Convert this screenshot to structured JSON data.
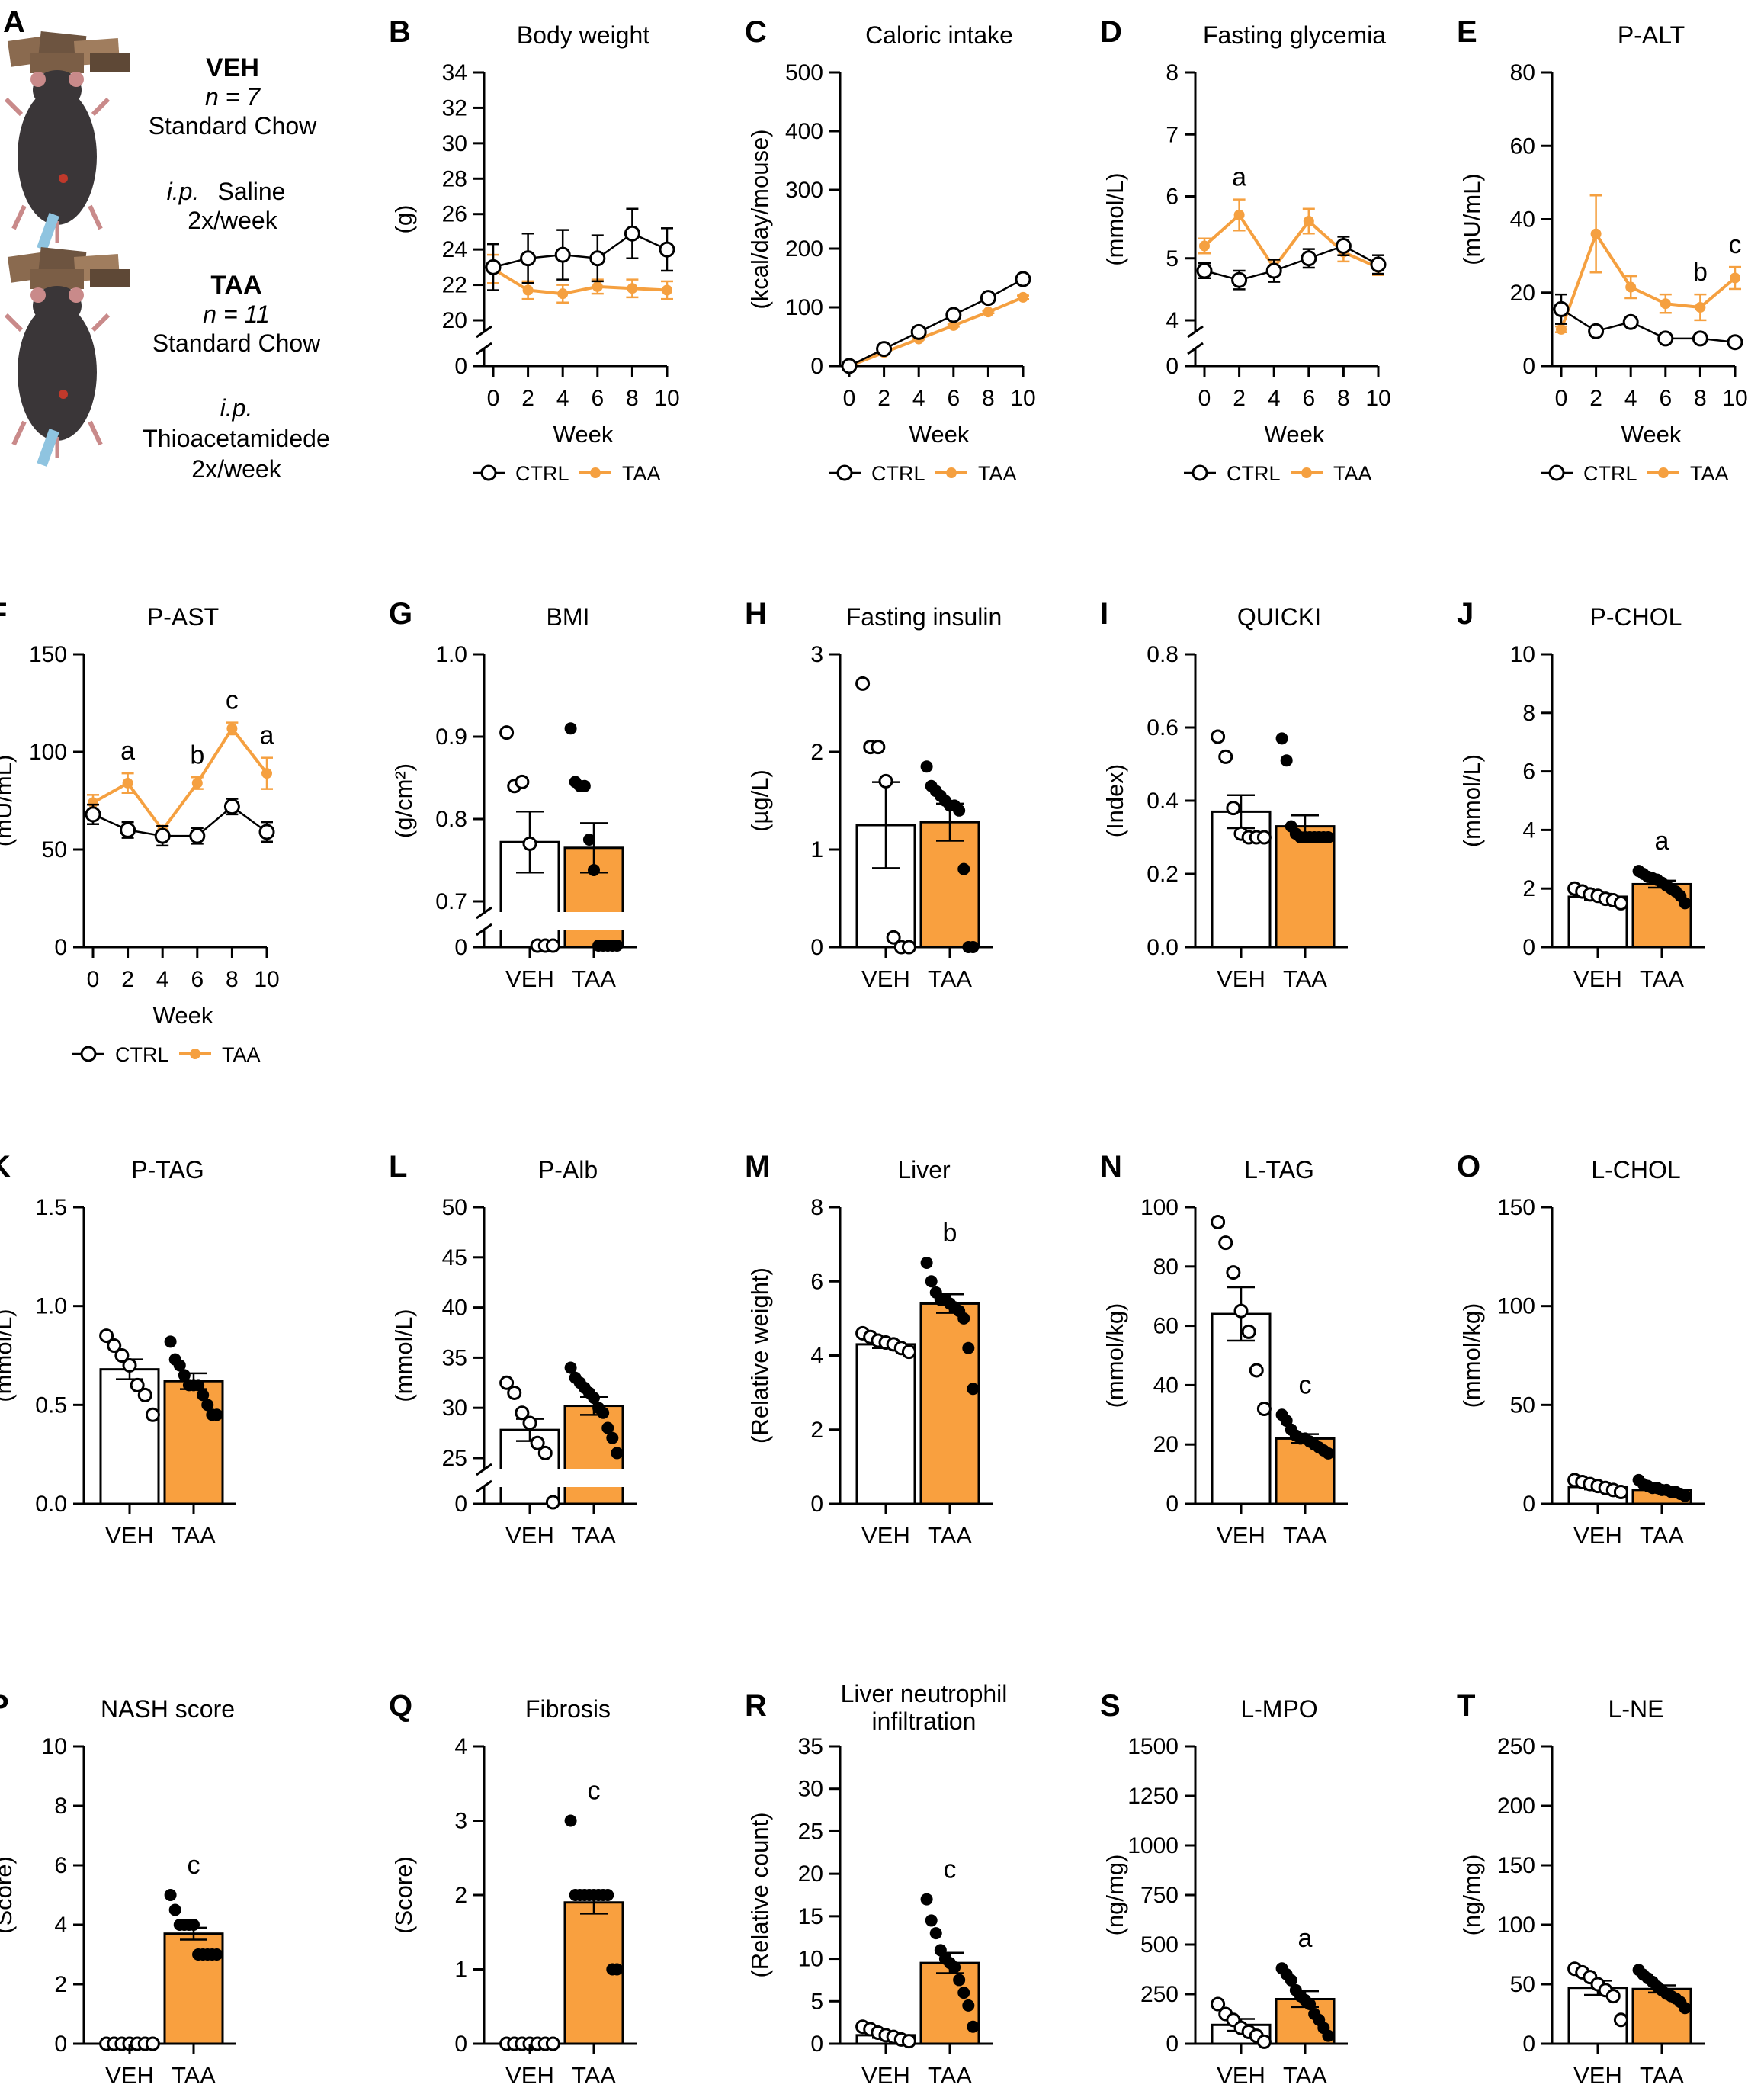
{
  "colors": {
    "ctrl_fill": "#ffffff",
    "taa_fill": "#f9a03f",
    "taa_line": "#f5a040",
    "ink": "#000000"
  },
  "legend": {
    "ctrl": "CTRL",
    "taa": "TAA"
  },
  "groups": {
    "veh": "VEH",
    "taa": "TAA"
  },
  "week_label": "Week",
  "scheme": {
    "label": "A",
    "veh": {
      "title": "VEH",
      "n": "n = 7",
      "diet": "Standard Chow",
      "route": "i.p.",
      "agent": "Saline",
      "freq": "2x/week"
    },
    "taa": {
      "title": "TAA",
      "n": "n = 11",
      "diet": "Standard Chow",
      "route": "i.p.",
      "agent": "Thioacetamidede",
      "freq": "2x/week"
    },
    "icons": [
      "chow-pellets-icon",
      "mouse-icon",
      "syringe-icon"
    ]
  },
  "chart_data": [
    {
      "id": "B",
      "type": "line",
      "title": "Body weight",
      "ylabel": "(g)",
      "xlabel": "Week",
      "x": [
        0,
        2,
        4,
        6,
        8,
        10
      ],
      "ylim": [
        20,
        34
      ],
      "yticks": [
        "20",
        "22",
        "24",
        "26",
        "28",
        "30",
        "32",
        "34"
      ],
      "axis_break": true,
      "zero_tick": "0",
      "series": [
        {
          "name": "CTRL",
          "values": [
            23.0,
            23.5,
            23.7,
            23.5,
            24.9,
            24.0
          ],
          "err": [
            1.3,
            1.4,
            1.4,
            1.3,
            1.4,
            1.2
          ]
        },
        {
          "name": "TAA",
          "values": [
            22.9,
            21.7,
            21.5,
            21.9,
            21.8,
            21.7
          ],
          "err": [
            0.8,
            0.5,
            0.5,
            0.4,
            0.5,
            0.5
          ]
        }
      ]
    },
    {
      "id": "C",
      "type": "line",
      "title": "Caloric intake",
      "ylabel": "(kcal/day/mouse)",
      "xlabel": "Week",
      "x": [
        0,
        2,
        4,
        6,
        8,
        10
      ],
      "ylim": [
        0,
        500
      ],
      "yticks": [
        "0",
        "100",
        "200",
        "300",
        "400",
        "500"
      ],
      "series": [
        {
          "name": "CTRL",
          "values": [
            0,
            29,
            58,
            87,
            116,
            148
          ],
          "err": [
            0,
            2,
            2,
            3,
            3,
            8
          ]
        },
        {
          "name": "TAA",
          "values": [
            0,
            23,
            46,
            69,
            92,
            117
          ],
          "err": [
            0,
            1,
            1,
            2,
            2,
            3
          ]
        }
      ]
    },
    {
      "id": "D",
      "type": "line",
      "title": "Fasting glycemia",
      "ylabel": "(mmol/L)",
      "xlabel": "Week",
      "x": [
        0,
        2,
        4,
        6,
        8,
        10
      ],
      "ylim": [
        4,
        8
      ],
      "yticks": [
        "4",
        "5",
        "6",
        "7",
        "8"
      ],
      "axis_break": true,
      "zero_tick": "0",
      "series": [
        {
          "name": "CTRL",
          "values": [
            4.8,
            4.65,
            4.8,
            5.0,
            5.2,
            4.9
          ],
          "err": [
            0.12,
            0.15,
            0.18,
            0.15,
            0.15,
            0.15
          ]
        },
        {
          "name": "TAA",
          "values": [
            5.2,
            5.7,
            4.85,
            5.6,
            5.1,
            4.85
          ],
          "err": [
            0.12,
            0.25,
            0.12,
            0.2,
            0.15,
            0.12
          ]
        }
      ],
      "annotations": [
        {
          "x": 2,
          "text": "a"
        }
      ]
    },
    {
      "id": "E",
      "type": "line",
      "title": "P-ALT",
      "ylabel": "(mU/mL)",
      "xlabel": "Week",
      "x": [
        0,
        2,
        4,
        6,
        8,
        10
      ],
      "ylim": [
        0,
        80
      ],
      "yticks": [
        "0",
        "20",
        "40",
        "60",
        "80"
      ],
      "series": [
        {
          "name": "CTRL",
          "values": [
            15.5,
            9.5,
            12,
            7.5,
            7.5,
            6.5
          ],
          "err": [
            4,
            0.6,
            1,
            0.6,
            0.6,
            0.6
          ]
        },
        {
          "name": "TAA",
          "values": [
            10,
            36,
            21.5,
            17,
            16,
            24
          ],
          "err": [
            0.8,
            10.5,
            3,
            2.5,
            3.5,
            3
          ]
        }
      ],
      "annotations": [
        {
          "x": 8,
          "text": "b"
        },
        {
          "x": 10,
          "text": "c"
        }
      ]
    },
    {
      "id": "F",
      "type": "line",
      "title": "P-AST",
      "ylabel": "(mU/mL)",
      "xlabel": "Week",
      "x": [
        0,
        2,
        4,
        6,
        8,
        10
      ],
      "ylim": [
        0,
        150
      ],
      "yticks": [
        "0",
        "50",
        "100",
        "150"
      ],
      "series": [
        {
          "name": "CTRL",
          "values": [
            68,
            60,
            57,
            57,
            72,
            59
          ],
          "err": [
            5,
            4,
            5,
            4,
            4,
            5
          ]
        },
        {
          "name": "TAA",
          "values": [
            74,
            84,
            60,
            84,
            112,
            89
          ],
          "err": [
            4,
            5,
            2,
            3,
            3,
            8
          ]
        }
      ],
      "annotations": [
        {
          "x": 2,
          "text": "a"
        },
        {
          "x": 6,
          "text": "b"
        },
        {
          "x": 8,
          "text": "c"
        },
        {
          "x": 10,
          "text": "a"
        }
      ]
    },
    {
      "id": "G",
      "type": "bar",
      "title": "BMI",
      "ylabel": "(g/cm²)",
      "categories": [
        "VEH",
        "TAA"
      ],
      "ylim": [
        0.7,
        1.0
      ],
      "yticks": [
        "0.7",
        "0.8",
        "0.9",
        "1.0"
      ],
      "axis_break": true,
      "zero_tick": "0",
      "values": [
        0.772,
        0.765
      ],
      "err": [
        0.037,
        0.03
      ],
      "points": [
        [
          0.905,
          0.84,
          0.845,
          0.77,
          0.66,
          0.66,
          0.66
        ],
        [
          0.91,
          0.845,
          0.84,
          0.84,
          0.775,
          0.738,
          0.66,
          0.66,
          0.66,
          0.66,
          0.66
        ]
      ]
    },
    {
      "id": "H",
      "type": "bar",
      "title": "Fasting insulin",
      "ylabel": "(µg/L)",
      "categories": [
        "VEH",
        "TAA"
      ],
      "ylim": [
        0,
        3
      ],
      "yticks": [
        "0",
        "1",
        "2",
        "3"
      ],
      "values": [
        1.25,
        1.28
      ],
      "err": [
        0.44,
        0.19
      ],
      "points": [
        [
          2.7,
          2.05,
          2.05,
          1.7,
          0.1,
          0.0,
          0.0
        ],
        [
          1.85,
          1.65,
          1.6,
          1.55,
          1.5,
          1.45,
          1.45,
          1.4,
          0.8,
          0.0,
          0.0
        ]
      ]
    },
    {
      "id": "I",
      "type": "bar",
      "title": "QUICKI",
      "ylabel": "(Index)",
      "categories": [
        "VEH",
        "TAA"
      ],
      "ylim": [
        0,
        0.8
      ],
      "yticks": [
        "0.0",
        "0.2",
        "0.4",
        "0.6",
        "0.8"
      ],
      "values": [
        0.37,
        0.33
      ],
      "err": [
        0.045,
        0.03
      ],
      "points": [
        [
          0.575,
          0.52,
          0.38,
          0.31,
          0.3,
          0.3,
          0.3
        ],
        [
          0.57,
          0.51,
          0.33,
          0.31,
          0.3,
          0.3,
          0.3,
          0.3,
          0.3,
          0.3,
          0.3
        ]
      ]
    },
    {
      "id": "J",
      "type": "bar",
      "title": "P-CHOL",
      "ylabel": "(mmol/L)",
      "categories": [
        "VEH",
        "TAA"
      ],
      "ylim": [
        0,
        10
      ],
      "yticks": [
        "0",
        "2",
        "4",
        "6",
        "8",
        "10"
      ],
      "values": [
        1.72,
        2.15
      ],
      "err": [
        0.1,
        0.12
      ],
      "annotations": [
        {
          "group": 1,
          "text": "a"
        }
      ],
      "points": [
        [
          2.0,
          1.9,
          1.8,
          1.75,
          1.65,
          1.6,
          1.5
        ],
        [
          2.6,
          2.5,
          2.4,
          2.35,
          2.3,
          2.2,
          2.1,
          2.0,
          1.9,
          1.75,
          1.5
        ]
      ]
    },
    {
      "id": "K",
      "type": "bar",
      "title": "P-TAG",
      "ylabel": "(mmol/L)",
      "categories": [
        "VEH",
        "TAA"
      ],
      "ylim": [
        0,
        1.5
      ],
      "yticks": [
        "0.0",
        "0.5",
        "1.0",
        "1.5"
      ],
      "values": [
        0.68,
        0.62
      ],
      "err": [
        0.05,
        0.04
      ],
      "points": [
        [
          0.85,
          0.8,
          0.75,
          0.7,
          0.6,
          0.55,
          0.45
        ],
        [
          0.82,
          0.73,
          0.7,
          0.65,
          0.6,
          0.6,
          0.6,
          0.55,
          0.5,
          0.45,
          0.45
        ]
      ]
    },
    {
      "id": "L",
      "type": "bar",
      "title": "P-Alb",
      "ylabel": "(mmol/L)",
      "categories": [
        "VEH",
        "TAA"
      ],
      "ylim": [
        25,
        50
      ],
      "yticks": [
        "25",
        "30",
        "35",
        "40",
        "45",
        "50"
      ],
      "axis_break": true,
      "zero_tick": "0",
      "values": [
        27.8,
        30.2
      ],
      "err": [
        1.1,
        0.9
      ],
      "points": [
        [
          32.5,
          31.5,
          29.5,
          28.5,
          26.5,
          25.5,
          24.0
        ],
        [
          34,
          33,
          32.5,
          32,
          31.5,
          31,
          30,
          29.5,
          28,
          27,
          25.5
        ]
      ]
    },
    {
      "id": "M",
      "type": "bar",
      "title": "Liver",
      "ylabel": "(Relative weight)",
      "categories": [
        "VEH",
        "TAA"
      ],
      "ylim": [
        0,
        8
      ],
      "yticks": [
        "0",
        "2",
        "4",
        "6",
        "8"
      ],
      "values": [
        4.3,
        5.4
      ],
      "err": [
        0.1,
        0.25
      ],
      "annotations": [
        {
          "group": 1,
          "text": "b"
        }
      ],
      "points": [
        [
          4.6,
          4.5,
          4.4,
          4.35,
          4.3,
          4.2,
          4.1
        ],
        [
          6.5,
          6.0,
          5.7,
          5.5,
          5.5,
          5.4,
          5.3,
          5.2,
          5.0,
          4.2,
          3.1
        ]
      ]
    },
    {
      "id": "N",
      "type": "bar",
      "title": "L-TAG",
      "ylabel": "(mmol/kg)",
      "categories": [
        "VEH",
        "TAA"
      ],
      "ylim": [
        0,
        100
      ],
      "yticks": [
        "0",
        "20",
        "40",
        "60",
        "80",
        "100"
      ],
      "values": [
        64,
        22
      ],
      "err": [
        9,
        1.5
      ],
      "annotations": [
        {
          "group": 1,
          "text": "c"
        }
      ],
      "points": [
        [
          95,
          88,
          78,
          65,
          58,
          45,
          32
        ],
        [
          30,
          28,
          25,
          23,
          22,
          22,
          21,
          20,
          19,
          18,
          17
        ]
      ]
    },
    {
      "id": "O",
      "type": "bar",
      "title": "L-CHOL",
      "ylabel": "(mmol/kg)",
      "categories": [
        "VEH",
        "TAA"
      ],
      "ylim": [
        0,
        150
      ],
      "yticks": [
        "0",
        "50",
        "100",
        "150"
      ],
      "values": [
        8.5,
        7.0
      ],
      "err": [
        1.2,
        0.9
      ],
      "points": [
        [
          12,
          11,
          10,
          9,
          8,
          7,
          6
        ],
        [
          12,
          10,
          9,
          8,
          8,
          7,
          7,
          6,
          6,
          5,
          4
        ]
      ]
    },
    {
      "id": "P",
      "type": "bar",
      "title": "NASH score",
      "ylabel": "(Score)",
      "categories": [
        "VEH",
        "TAA"
      ],
      "ylim": [
        0,
        10
      ],
      "yticks": [
        "0",
        "2",
        "4",
        "6",
        "8",
        "10"
      ],
      "values": [
        0,
        3.7
      ],
      "err": [
        0,
        0.2
      ],
      "annotations": [
        {
          "group": 1,
          "text": "c"
        }
      ],
      "points": [
        [
          0,
          0,
          0,
          0,
          0,
          0,
          0
        ],
        [
          5,
          4.5,
          4,
          4,
          4,
          4,
          3,
          3,
          3,
          3,
          3
        ]
      ]
    },
    {
      "id": "Q",
      "type": "bar",
      "title": "Fibrosis",
      "ylabel": "(Score)",
      "categories": [
        "VEH",
        "TAA"
      ],
      "ylim": [
        0,
        4
      ],
      "yticks": [
        "0",
        "1",
        "2",
        "3",
        "4"
      ],
      "values": [
        0,
        1.9
      ],
      "err": [
        0,
        0.15
      ],
      "annotations": [
        {
          "group": 1,
          "text": "c"
        }
      ],
      "points": [
        [
          0,
          0,
          0,
          0,
          0,
          0,
          0
        ],
        [
          3,
          2,
          2,
          2,
          2,
          2,
          2,
          2,
          2,
          1,
          1
        ]
      ]
    },
    {
      "id": "R",
      "type": "bar",
      "title": "Liver neutrophil infiltration",
      "title_lines": [
        "Liver neutrophil",
        "infiltration"
      ],
      "ylabel": "(Relative count)",
      "categories": [
        "VEH",
        "TAA"
      ],
      "ylim": [
        0,
        35
      ],
      "yticks": [
        "0",
        "5",
        "10",
        "15",
        "20",
        "25",
        "30",
        "35"
      ],
      "values": [
        1.0,
        9.5
      ],
      "err": [
        0.3,
        1.2
      ],
      "annotations": [
        {
          "group": 1,
          "text": "c"
        }
      ],
      "points": [
        [
          2.0,
          1.7,
          1.3,
          1.0,
          0.8,
          0.5,
          0.3
        ],
        [
          17,
          14.5,
          13,
          11,
          10,
          9.5,
          9,
          7.5,
          6,
          4.5,
          2
        ]
      ]
    },
    {
      "id": "S",
      "type": "bar",
      "title": "L-MPO",
      "ylabel": "(ng/mg)",
      "categories": [
        "VEH",
        "TAA"
      ],
      "ylim": [
        0,
        1500
      ],
      "yticks": [
        "0",
        "250",
        "500",
        "750",
        "1000",
        "1250",
        "1500"
      ],
      "values": [
        95,
        225
      ],
      "err": [
        30,
        40
      ],
      "annotations": [
        {
          "group": 1,
          "text": "a"
        }
      ],
      "points": [
        [
          200,
          150,
          120,
          80,
          60,
          40,
          10
        ],
        [
          380,
          350,
          320,
          270,
          240,
          220,
          200,
          150,
          120,
          80,
          40
        ]
      ]
    },
    {
      "id": "T",
      "type": "bar",
      "title": "L-NE",
      "ylabel": "(ng/mg)",
      "categories": [
        "VEH",
        "TAA"
      ],
      "ylim": [
        0,
        250
      ],
      "yticks": [
        "0",
        "50",
        "100",
        "150",
        "200",
        "250"
      ],
      "values": [
        47,
        46
      ],
      "err": [
        6,
        3
      ],
      "points": [
        [
          63,
          60,
          56,
          50,
          45,
          40,
          20
        ],
        [
          62,
          58,
          55,
          52,
          48,
          45,
          42,
          40,
          38,
          35,
          30
        ]
      ]
    }
  ]
}
